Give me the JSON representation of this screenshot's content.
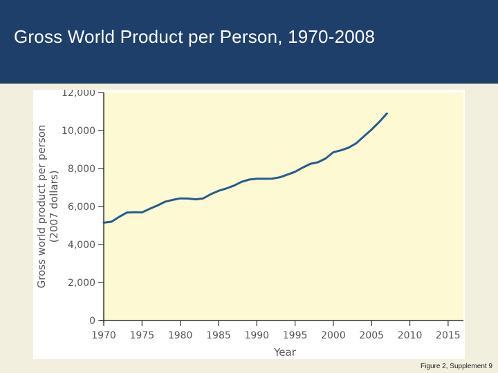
{
  "slide": {
    "title": "Gross World Product per Person, 1970-2008",
    "caption": "Figure 2, Supplement 9"
  },
  "colors": {
    "header_bg": "#1f3f6b",
    "plot_bg": "#fdf9d3",
    "line": "#245c8f",
    "axis": "#333333"
  },
  "chart_data": {
    "type": "line",
    "xlabel": "Year",
    "ylabel": "Gross world product per person",
    "ylabel_units": "(2007 dollars)",
    "xlim": [
      1970,
      2017
    ],
    "ylim": [
      0,
      12000
    ],
    "xticks": [
      1970,
      1975,
      1980,
      1985,
      1990,
      1995,
      2000,
      2005,
      2010,
      2015
    ],
    "xtick_labels": [
      "1970",
      "1975",
      "1980",
      "1985",
      "1990",
      "1995",
      "2000",
      "2005",
      "2010",
      "2015"
    ],
    "yticks": [
      0,
      2000,
      4000,
      6000,
      8000,
      10000,
      12000
    ],
    "ytick_labels": [
      "0",
      "2,000",
      "4,000",
      "6,000",
      "8,000",
      "10,000",
      "12,000"
    ],
    "grid": false,
    "series": [
      {
        "x": [
          1970,
          1971,
          1972,
          1973,
          1974,
          1975,
          1976,
          1977,
          1978,
          1979,
          1980,
          1981,
          1982,
          1983,
          1984,
          1985,
          1986,
          1987,
          1988,
          1989,
          1990,
          1991,
          1992,
          1993,
          1994,
          1995,
          1996,
          1997,
          1998,
          1999,
          2000,
          2001,
          2002,
          2003,
          2004,
          2005,
          2006,
          2007
        ],
        "y": [
          5150,
          5200,
          5450,
          5680,
          5700,
          5690,
          5880,
          6050,
          6250,
          6350,
          6430,
          6420,
          6380,
          6430,
          6650,
          6830,
          6950,
          7100,
          7300,
          7420,
          7460,
          7460,
          7470,
          7540,
          7680,
          7830,
          8050,
          8250,
          8330,
          8530,
          8860,
          8960,
          9100,
          9330,
          9700,
          10050,
          10450,
          10900
        ]
      }
    ]
  }
}
